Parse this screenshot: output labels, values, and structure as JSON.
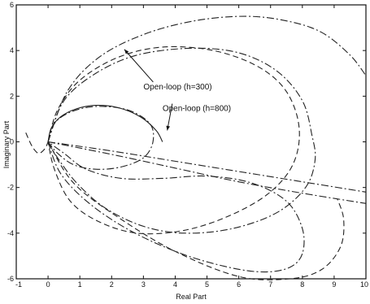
{
  "chart_data": {
    "type": "line",
    "title": "",
    "xlabel": "Real Part",
    "ylabel": "Imaginary Part",
    "xlim": [
      -1,
      10
    ],
    "ylim": [
      -6,
      6
    ],
    "x_ticks": [
      -1,
      0,
      1,
      2,
      3,
      4,
      5,
      6,
      7,
      8,
      9,
      10
    ],
    "y_ticks": [
      -6,
      -4,
      -2,
      0,
      2,
      4,
      6
    ],
    "x_tick_labels": [
      "-1",
      "0",
      "1",
      "2",
      "3",
      "4",
      "5",
      "6",
      "7",
      "8",
      "9",
      "10"
    ],
    "y_tick_labels": [
      "-6",
      "-4",
      "-2",
      "0",
      "2",
      "4",
      "6"
    ],
    "grid": false,
    "legend": "none",
    "annotations": [
      {
        "text": "Open-loop (h=300)",
        "x": 3.0,
        "y": 2.3,
        "arrow_to": [
          2.4,
          4.05
        ]
      },
      {
        "text": "Open-loop (h=800)",
        "x": 3.6,
        "y": 1.35,
        "arrow_to": [
          3.75,
          0.5
        ]
      }
    ],
    "series": [
      {
        "style": "dashdot",
        "x": [
          0,
          0.5,
          1.5,
          2.8,
          4.5,
          6.0,
          7.2,
          8.0,
          8.3,
          8.4,
          8.1,
          7.2,
          5.8,
          4.3,
          3.0,
          1.8,
          0.9,
          0.3,
          0
        ],
        "y": [
          0,
          1.8,
          3.0,
          3.8,
          4.1,
          3.9,
          3.1,
          1.8,
          0.3,
          -0.8,
          -2.0,
          -3.1,
          -3.8,
          -4.0,
          -3.7,
          -2.9,
          -1.8,
          -0.7,
          0
        ]
      },
      {
        "style": "dashdot",
        "x": [
          0,
          0.6,
          1.6,
          3.0,
          4.6,
          6.2,
          7.5,
          8.6,
          9.5,
          10.0
        ],
        "y": [
          0,
          2.2,
          3.7,
          4.7,
          5.3,
          5.5,
          5.3,
          4.8,
          3.8,
          2.9
        ]
      },
      {
        "style": "dashdot",
        "x": [
          0,
          0.4,
          1.3,
          2.6,
          4.2,
          5.7,
          6.8,
          7.6,
          8.0,
          8.0,
          7.5,
          6.4,
          5.0,
          3.6,
          2.3,
          1.2,
          0.5,
          0
        ],
        "y": [
          0,
          -1.4,
          -2.7,
          -3.9,
          -4.9,
          -5.5,
          -5.7,
          -5.5,
          -4.9,
          -3.8,
          -2.6,
          -1.8,
          -1.5,
          -1.6,
          -1.6,
          -1.2,
          -0.5,
          0
        ]
      },
      {
        "style": "dashed",
        "x": [
          0,
          0.3,
          1.0,
          2.2,
          3.6,
          5.2,
          6.6,
          7.5,
          7.9,
          7.7,
          6.9,
          5.6,
          4.2,
          2.8,
          1.6,
          0.7,
          0.2,
          0
        ],
        "y": [
          0,
          1.4,
          2.7,
          3.7,
          4.15,
          4.0,
          3.3,
          2.2,
          0.6,
          -1.0,
          -2.3,
          -3.3,
          -3.9,
          -4.0,
          -3.5,
          -2.6,
          -1.2,
          0
        ]
      },
      {
        "style": "dashed",
        "x": [
          0,
          0.8,
          2.2,
          4.0,
          6.0,
          7.6,
          8.6,
          9.2,
          9.3,
          9.1
        ],
        "y": [
          0,
          -1.8,
          -3.3,
          -4.8,
          -5.9,
          -6.0,
          -5.6,
          -4.6,
          -3.4,
          -2.5
        ]
      },
      {
        "style": "dashdot",
        "x": [
          0,
          0.2,
          0.7,
          1.5,
          2.5,
          3.2,
          3.3,
          3.0,
          2.3,
          1.5,
          0.8,
          0.3,
          0
        ],
        "y": [
          0,
          0.8,
          1.3,
          1.55,
          1.4,
          0.8,
          0.0,
          -0.7,
          -1.1,
          -1.2,
          -1.0,
          -0.5,
          0
        ]
      },
      {
        "style": "solid",
        "x": [
          0,
          0.1,
          0.4,
          0.9,
          1.5,
          2.2,
          2.9,
          3.4,
          3.6
        ],
        "y": [
          0,
          0.6,
          1.1,
          1.45,
          1.6,
          1.5,
          1.1,
          0.5,
          0.0
        ]
      },
      {
        "style": "dashdot",
        "x": [
          0,
          2.0,
          4.0,
          6.0,
          8.0,
          10.0
        ],
        "y": [
          0,
          -0.4,
          -0.85,
          -1.3,
          -1.75,
          -2.2
        ]
      },
      {
        "style": "dashdot",
        "x": [
          0,
          2.0,
          4.0,
          6.0,
          8.0,
          10.0
        ],
        "y": [
          0,
          -0.55,
          -1.15,
          -1.75,
          -2.25,
          -2.7
        ]
      },
      {
        "style": "dashed",
        "x": [
          -0.7,
          -0.5,
          -0.3,
          -0.1,
          0
        ],
        "y": [
          0.4,
          -0.2,
          -0.5,
          -0.3,
          0
        ]
      }
    ]
  }
}
